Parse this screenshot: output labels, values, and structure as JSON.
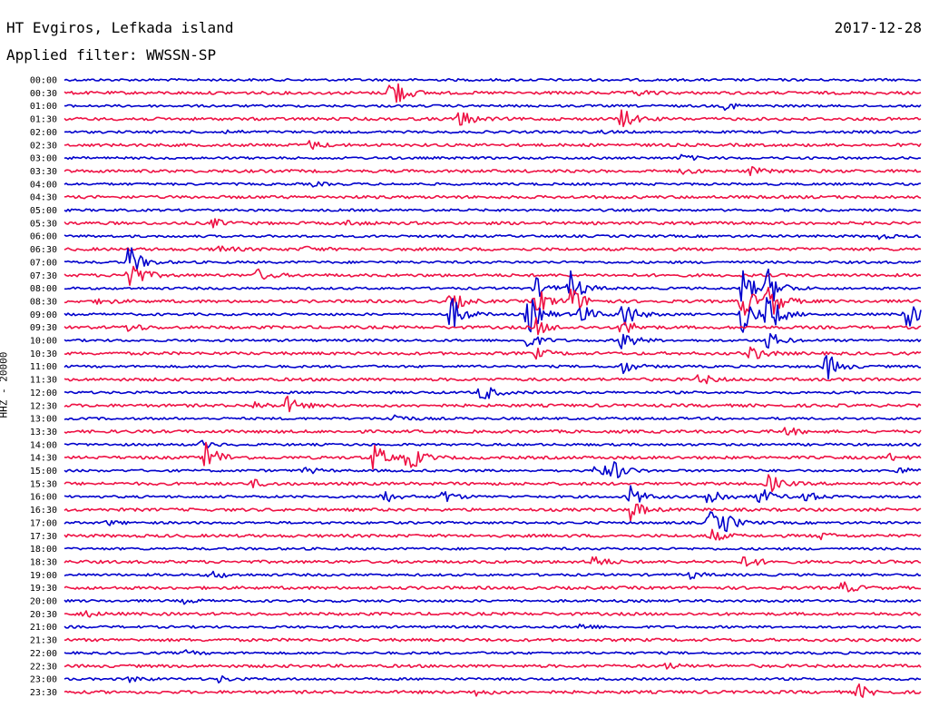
{
  "header": {
    "station": "HT Evgiros, Lefkada island",
    "filter_label": "Applied filter: WWSSN-SP",
    "date": "2017-12-28"
  },
  "chart_data": {
    "type": "seismogram",
    "ylabel": "HHZ - 20000",
    "series_colors": [
      "#0000cc",
      "#ee1144"
    ],
    "traces": [
      {
        "time": "00:00",
        "events": []
      },
      {
        "time": "00:30",
        "events": [
          {
            "t": 0.379,
            "amp": 1.9
          },
          {
            "t": 0.665,
            "amp": 0.3
          }
        ]
      },
      {
        "time": "01:00",
        "events": [
          {
            "t": 0.771,
            "amp": 0.35
          }
        ]
      },
      {
        "time": "01:30",
        "events": [
          {
            "t": 0.46,
            "amp": 0.8
          },
          {
            "t": 0.649,
            "amp": 0.9
          },
          {
            "t": 0.07,
            "amp": 0.15
          }
        ]
      },
      {
        "time": "02:00",
        "events": [
          {
            "t": 0.19,
            "amp": 0.15
          },
          {
            "t": 0.62,
            "amp": 0.15
          }
        ]
      },
      {
        "time": "02:30",
        "events": [
          {
            "t": 0.286,
            "amp": 0.35
          }
        ]
      },
      {
        "time": "03:00",
        "events": [
          {
            "t": 0.72,
            "amp": 0.3
          }
        ]
      },
      {
        "time": "03:30",
        "events": [
          {
            "t": 0.72,
            "amp": 0.2
          },
          {
            "t": 0.8,
            "amp": 0.3
          }
        ]
      },
      {
        "time": "04:00",
        "events": [
          {
            "t": 0.29,
            "amp": 0.15
          }
        ]
      },
      {
        "time": "04:30",
        "events": []
      },
      {
        "time": "05:00",
        "events": []
      },
      {
        "time": "05:30",
        "events": [
          {
            "t": 0.172,
            "amp": 0.35
          },
          {
            "t": 0.33,
            "amp": 0.2
          }
        ]
      },
      {
        "time": "06:00",
        "events": [
          {
            "t": 0.95,
            "amp": 0.2
          }
        ]
      },
      {
        "time": "06:30",
        "events": [
          {
            "t": 0.18,
            "amp": 0.3
          },
          {
            "t": 0.28,
            "amp": 0.2
          }
        ]
      },
      {
        "time": "07:00",
        "events": [
          {
            "t": 0.074,
            "amp": 1.5
          }
        ]
      },
      {
        "time": "07:30",
        "events": [
          {
            "t": 0.074,
            "amp": 1.6
          },
          {
            "t": 0.225,
            "amp": 0.5
          }
        ]
      },
      {
        "time": "08:00",
        "events": [
          {
            "t": 0.55,
            "amp": 0.8
          },
          {
            "t": 0.59,
            "amp": 1.3
          },
          {
            "t": 0.79,
            "amp": 1.6
          },
          {
            "t": 0.82,
            "amp": 1.6
          }
        ]
      },
      {
        "time": "08:30",
        "events": [
          {
            "t": 0.45,
            "amp": 0.9
          },
          {
            "t": 0.55,
            "amp": 1.2
          },
          {
            "t": 0.59,
            "amp": 1.3
          },
          {
            "t": 0.79,
            "amp": 1.5
          },
          {
            "t": 0.82,
            "amp": 1.6
          },
          {
            "t": 0.04,
            "amp": 0.3
          }
        ]
      },
      {
        "time": "09:00",
        "events": [
          {
            "t": 0.45,
            "amp": 1.6
          },
          {
            "t": 0.54,
            "amp": 1.8
          },
          {
            "t": 0.6,
            "amp": 1.0
          },
          {
            "t": 0.65,
            "amp": 1.4
          },
          {
            "t": 0.79,
            "amp": 1.6
          },
          {
            "t": 0.82,
            "amp": 1.8
          },
          {
            "t": 0.98,
            "amp": 1.4
          }
        ]
      },
      {
        "time": "09:30",
        "events": [
          {
            "t": 0.074,
            "amp": 0.4
          },
          {
            "t": 0.55,
            "amp": 0.7
          },
          {
            "t": 0.65,
            "amp": 0.8
          }
        ]
      },
      {
        "time": "10:00",
        "events": [
          {
            "t": 0.54,
            "amp": 0.7
          },
          {
            "t": 0.65,
            "amp": 0.9
          },
          {
            "t": 0.82,
            "amp": 0.8
          }
        ]
      },
      {
        "time": "10:30",
        "events": [
          {
            "t": 0.55,
            "amp": 0.4
          },
          {
            "t": 0.8,
            "amp": 0.7
          }
        ]
      },
      {
        "time": "11:00",
        "events": [
          {
            "t": 0.888,
            "amp": 1.2
          },
          {
            "t": 0.65,
            "amp": 0.6
          }
        ]
      },
      {
        "time": "11:30",
        "events": [
          {
            "t": 0.74,
            "amp": 0.5
          }
        ]
      },
      {
        "time": "12:00",
        "events": [
          {
            "t": 0.485,
            "amp": 0.9
          }
        ]
      },
      {
        "time": "12:30",
        "events": [
          {
            "t": 0.259,
            "amp": 0.7
          },
          {
            "t": 0.222,
            "amp": 0.3
          }
        ]
      },
      {
        "time": "13:00",
        "events": [
          {
            "t": 0.38,
            "amp": 0.5
          }
        ]
      },
      {
        "time": "13:30",
        "events": [
          {
            "t": 0.84,
            "amp": 0.4
          }
        ]
      },
      {
        "time": "14:00",
        "events": [
          {
            "t": 0.16,
            "amp": 0.3
          }
        ]
      },
      {
        "time": "14:30",
        "events": [
          {
            "t": 0.165,
            "amp": 1.4
          },
          {
            "t": 0.36,
            "amp": 1.2
          },
          {
            "t": 0.4,
            "amp": 1.3
          },
          {
            "t": 0.96,
            "amp": 0.3
          }
        ]
      },
      {
        "time": "15:00",
        "events": [
          {
            "t": 0.62,
            "amp": 0.8
          },
          {
            "t": 0.64,
            "amp": 0.7
          },
          {
            "t": 0.28,
            "amp": 0.3
          },
          {
            "t": 0.97,
            "amp": 0.4
          }
        ]
      },
      {
        "time": "15:30",
        "events": [
          {
            "t": 0.82,
            "amp": 0.8
          },
          {
            "t": 0.22,
            "amp": 0.3
          }
        ]
      },
      {
        "time": "16:00",
        "events": [
          {
            "t": 0.37,
            "amp": 0.6
          },
          {
            "t": 0.44,
            "amp": 0.6
          },
          {
            "t": 0.66,
            "amp": 0.9
          },
          {
            "t": 0.75,
            "amp": 1.1
          },
          {
            "t": 0.81,
            "amp": 0.8
          },
          {
            "t": 0.86,
            "amp": 0.6
          }
        ]
      },
      {
        "time": "16:30",
        "events": [
          {
            "t": 0.66,
            "amp": 0.9
          }
        ]
      },
      {
        "time": "17:00",
        "events": [
          {
            "t": 0.752,
            "amp": 1.1
          },
          {
            "t": 0.77,
            "amp": 0.6
          },
          {
            "t": 0.05,
            "amp": 0.2
          }
        ]
      },
      {
        "time": "17:30",
        "events": [
          {
            "t": 0.752,
            "amp": 0.6
          },
          {
            "t": 0.88,
            "amp": 0.3
          }
        ]
      },
      {
        "time": "18:00",
        "events": []
      },
      {
        "time": "18:30",
        "events": [
          {
            "t": 0.615,
            "amp": 0.6
          },
          {
            "t": 0.793,
            "amp": 0.6
          }
        ]
      },
      {
        "time": "19:00",
        "events": [
          {
            "t": 0.171,
            "amp": 0.4
          },
          {
            "t": 0.73,
            "amp": 0.3
          }
        ]
      },
      {
        "time": "19:30",
        "events": [
          {
            "t": 0.907,
            "amp": 0.5
          }
        ]
      },
      {
        "time": "20:00",
        "events": [
          {
            "t": 0.14,
            "amp": 0.2
          }
        ]
      },
      {
        "time": "20:30",
        "events": [
          {
            "t": 0.02,
            "amp": 0.3
          }
        ]
      },
      {
        "time": "21:00",
        "events": [
          {
            "t": 0.6,
            "amp": 0.3
          }
        ]
      },
      {
        "time": "21:30",
        "events": []
      },
      {
        "time": "22:00",
        "events": [
          {
            "t": 0.14,
            "amp": 0.2
          }
        ]
      },
      {
        "time": "22:30",
        "events": [
          {
            "t": 0.7,
            "amp": 0.25
          }
        ]
      },
      {
        "time": "23:00",
        "events": [
          {
            "t": 0.077,
            "amp": 0.3
          },
          {
            "t": 0.18,
            "amp": 0.25
          }
        ]
      },
      {
        "time": "23:30",
        "events": [
          {
            "t": 0.925,
            "amp": 0.6
          },
          {
            "t": 0.48,
            "amp": 0.25
          }
        ]
      }
    ]
  }
}
